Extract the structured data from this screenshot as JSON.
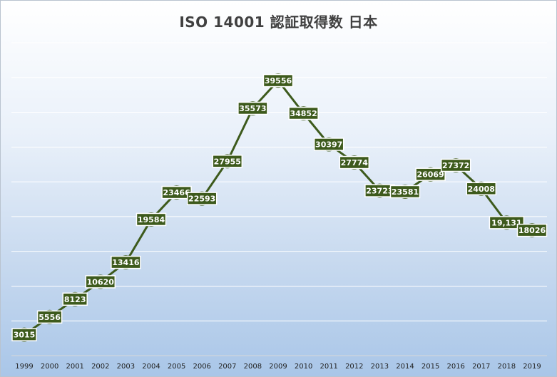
{
  "chart_data": {
    "type": "line",
    "title": "ISO 14001 認証取得数 日本",
    "xlabel": "",
    "ylabel": "",
    "categories": [
      "1999",
      "2000",
      "2001",
      "2002",
      "2003",
      "2004",
      "2005",
      "2006",
      "2007",
      "2008",
      "2009",
      "2010",
      "2011",
      "2012",
      "2013",
      "2014",
      "2015",
      "2016",
      "2017",
      "2018",
      "2019"
    ],
    "values": [
      3015,
      5556,
      8123,
      10620,
      13416,
      19584,
      23466,
      22593,
      27955,
      35573,
      39556,
      34852,
      30397,
      27774,
      23723,
      23581,
      26069,
      27372,
      24008,
      19131,
      18026
    ],
    "data_labels": [
      "3015",
      "5556",
      "8123",
      "10620",
      "13416",
      "19584",
      "23466",
      "22593",
      "27955",
      "35573",
      "39556",
      "34852",
      "30397",
      "27774",
      "23723",
      "23581",
      "26069",
      "27372",
      "24008",
      "19,131",
      "18026"
    ],
    "ylim": [
      0,
      45000
    ],
    "y_gridlines": [
      5000,
      10000,
      15000,
      20000,
      25000,
      30000,
      35000,
      40000,
      45000
    ],
    "grid": true,
    "legend": "none",
    "colors": {
      "line": "#3d5a1c",
      "marker": "#3d5a1c",
      "label_bg": "#3d5a1c",
      "label_text": "#ffffff",
      "gridline": "#ffffff"
    }
  }
}
